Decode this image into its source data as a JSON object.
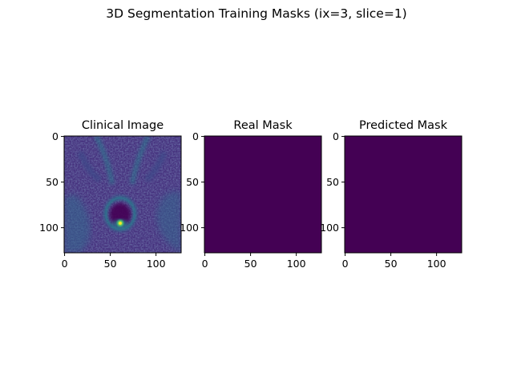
{
  "figure": {
    "suptitle": "3D Segmentation Training Masks (ix=3, slice=1)"
  },
  "chart_data": [
    {
      "type": "heatmap",
      "title": "Clinical Image",
      "xlim": [
        0,
        127
      ],
      "ylim": [
        127,
        0
      ],
      "xticks": [
        0,
        50,
        100
      ],
      "yticks": [
        0,
        50,
        100
      ],
      "colormap": "viridis",
      "content": "prostate MRI slice, mostly dark purple with a bright yellow-green spot near x=60, y=95"
    },
    {
      "type": "heatmap",
      "title": "Real Mask",
      "xlim": [
        0,
        127
      ],
      "ylim": [
        127,
        0
      ],
      "xticks": [
        0,
        50,
        100
      ],
      "yticks": [
        0,
        50,
        100
      ],
      "colormap": "viridis",
      "fill_color": "#440154",
      "value": 0
    },
    {
      "type": "heatmap",
      "title": "Predicted Mask",
      "xlim": [
        0,
        127
      ],
      "ylim": [
        127,
        0
      ],
      "xticks": [
        0,
        50,
        100
      ],
      "yticks": [
        0,
        50,
        100
      ],
      "colormap": "viridis",
      "fill_color": "#440154",
      "value": 0
    }
  ],
  "colors": {
    "viridis_low": "#440154",
    "viridis_mid": "#3b528b",
    "viridis_teal": "#21918c",
    "viridis_high": "#fde725"
  }
}
